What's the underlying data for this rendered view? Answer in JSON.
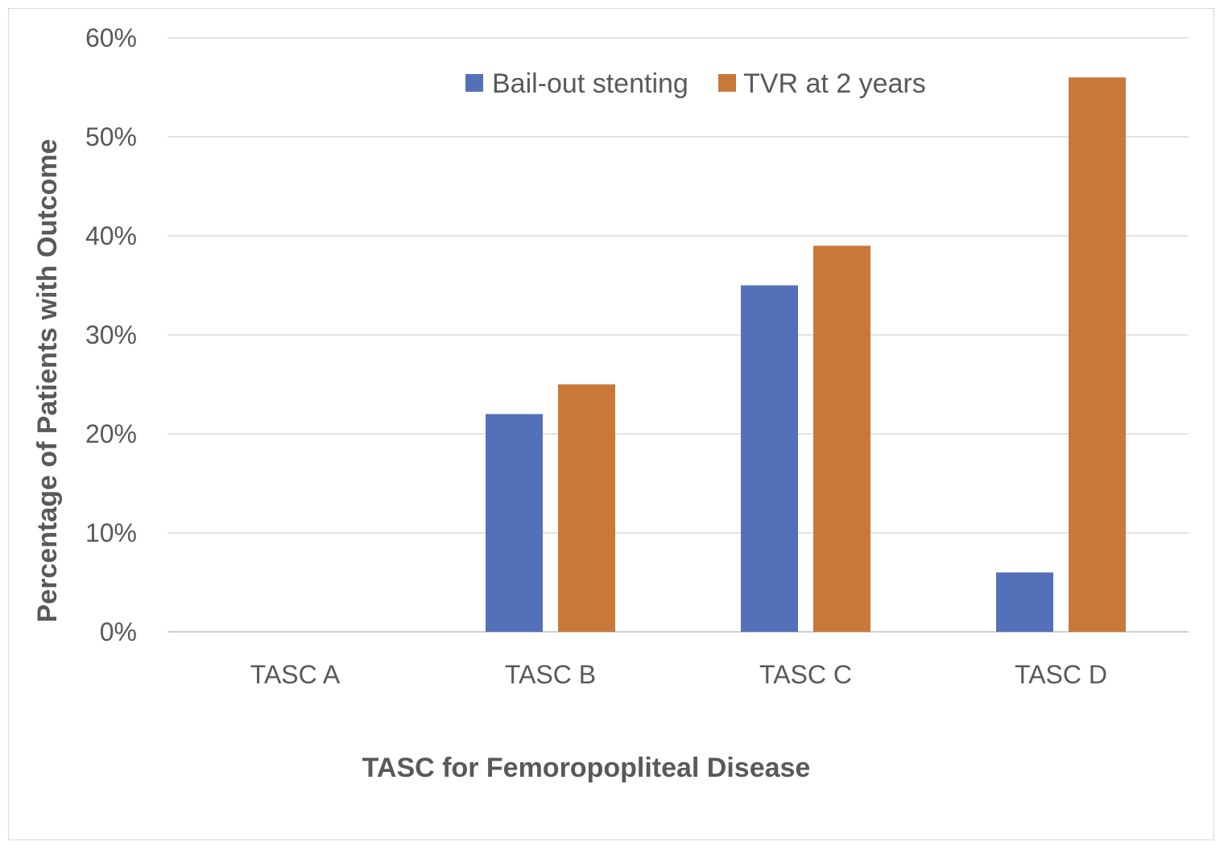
{
  "chart_data": {
    "type": "bar",
    "title": "",
    "xlabel": "TASC for Femoropopliteal Disease",
    "ylabel": "Percentage of Patients with Outcome",
    "categories": [
      "TASC A",
      "TASC B",
      "TASC C",
      "TASC D"
    ],
    "series": [
      {
        "name": "Bail-out stenting",
        "color": "#5470b8",
        "values": [
          0,
          22,
          35,
          6
        ]
      },
      {
        "name": "TVR at 2 years",
        "color": "#c8793a",
        "values": [
          0,
          25,
          39,
          56
        ]
      }
    ],
    "ylim": [
      0,
      60
    ],
    "yticks": [
      "0%",
      "10%",
      "20%",
      "30%",
      "40%",
      "50%",
      "60%"
    ],
    "ytick_values": [
      0,
      10,
      20,
      30,
      40,
      50,
      60
    ],
    "grid": true,
    "legend_position": "top-center"
  }
}
